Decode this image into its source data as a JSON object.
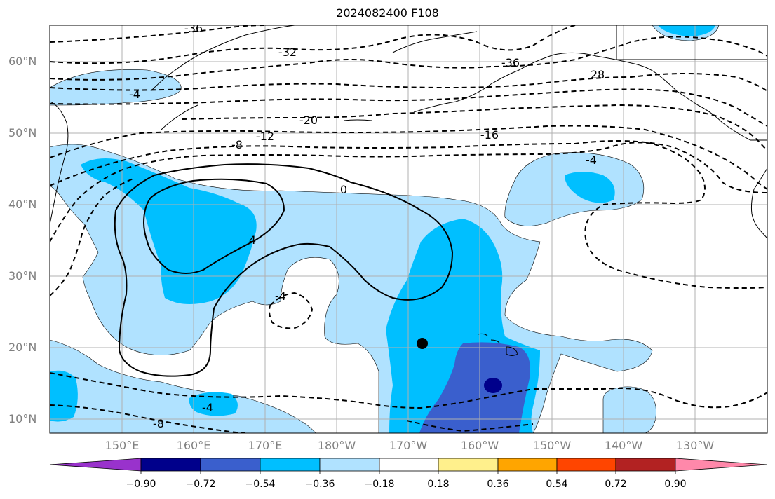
{
  "title": "2024082400 F108",
  "lat_labels": [
    "60°N",
    "50°N",
    "40°N",
    "30°N",
    "20°N",
    "10°N"
  ],
  "lon_labels": [
    "150°E",
    "160°E",
    "170°E",
    "180°W",
    "170°W",
    "160°W",
    "150°W",
    "140°W",
    "130°W"
  ],
  "contour_labels": [
    "-36",
    "-32",
    "-36",
    "28",
    "-4",
    "-20",
    "-16",
    "-12",
    "-8",
    "-4",
    "0",
    "4",
    "-4",
    "-4",
    "-8"
  ],
  "colorbar": {
    "tick_labels": [
      "−0.90",
      "−0.72",
      "−0.54",
      "−0.36",
      "−0.18",
      "0.18",
      "0.36",
      "0.54",
      "0.72",
      "0.90"
    ],
    "colors": [
      "#9932cc",
      "#00008b",
      "#3a5fcd",
      "#00bfff",
      "#b0e2ff",
      "#ffffff",
      "#fff08c",
      "#ffa500",
      "#ff4500",
      "#b22222",
      "#ff88aa"
    ]
  },
  "fill_colors": {
    "light_blue": "#b0e2ff",
    "deep_sky_blue": "#00bfff",
    "royal_blue": "#3a5fcd",
    "navy": "#00008b"
  },
  "marker": "black-dot"
}
